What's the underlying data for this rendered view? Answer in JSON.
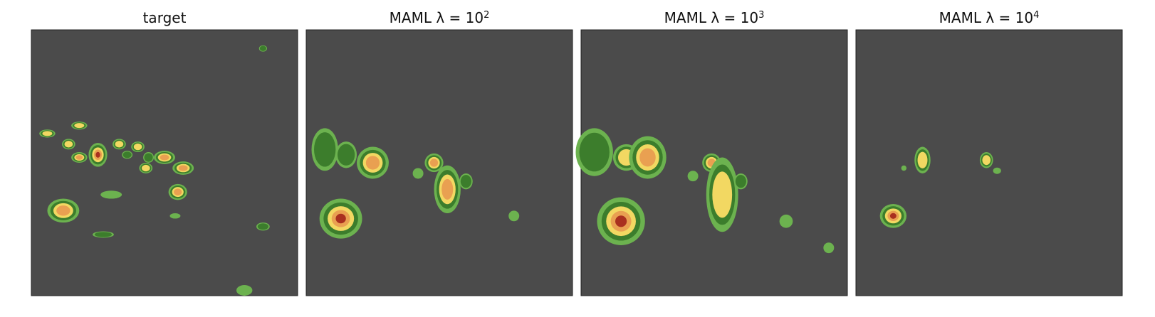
{
  "panels": [
    {
      "title": "target"
    },
    {
      "title": "MAML λ = 10",
      "exponent": "2"
    },
    {
      "title": "MAML λ = 10",
      "exponent": "3"
    },
    {
      "title": "MAML λ = 10",
      "exponent": "4"
    }
  ]
}
